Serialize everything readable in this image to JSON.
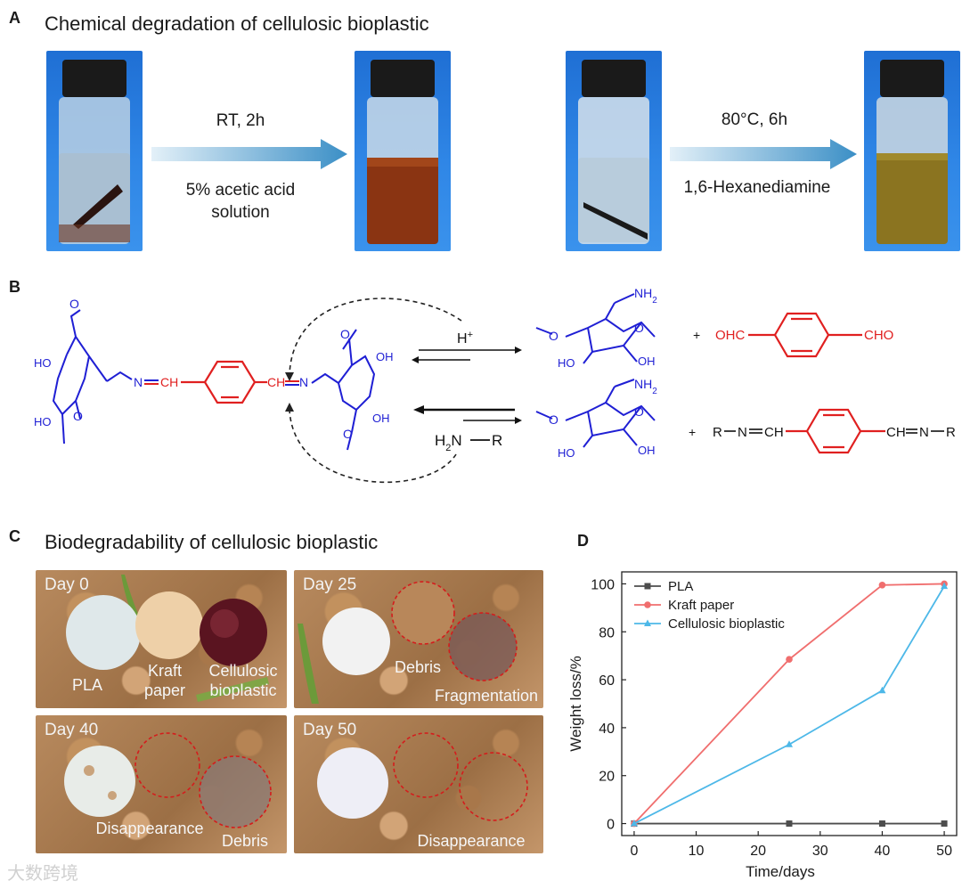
{
  "panel_a": {
    "letter": "A",
    "title": "Chemical degradation of cellulosic bioplastic",
    "step1": {
      "line1": "RT, 2h",
      "line2": "5% acetic acid",
      "line3": "solution"
    },
    "step2": {
      "line1": "80°C, 6h",
      "line2": "1,6-Hexanediamine"
    }
  },
  "panel_b": {
    "letter": "B",
    "labels": {
      "ho": "HO",
      "oh": "OH",
      "n": "N",
      "ch": "CH",
      "nh2": "NH",
      "nh2_sub": "2",
      "h_plus": "H",
      "plus_sup": "+",
      "ohc": "OHC",
      "cho": "CHO",
      "plus": "+",
      "h2n": "H",
      "h2n_sub": "2",
      "h2n_n": "N",
      "r": "R",
      "chn": "CH",
      "ch_eq": "C"
    }
  },
  "panel_c": {
    "letter": "C",
    "title": "Biodegradability of cellulosic bioplastic",
    "photos": [
      {
        "day": "Day 0",
        "labels": [
          "PLA",
          "Kraft\npaper",
          "Cellulosic\nbioplastic"
        ]
      },
      {
        "day": "Day 25",
        "labels": [
          "Debris",
          "Fragmentation"
        ]
      },
      {
        "day": "Day 40",
        "labels": [
          "Disappearance",
          "Debris"
        ]
      },
      {
        "day": "Day 50",
        "labels": [
          "Disappearance"
        ]
      }
    ]
  },
  "panel_d": {
    "letter": "D"
  },
  "watermark": "大数跨境",
  "chart_data": {
    "type": "line",
    "xlabel": "Time/days",
    "ylabel": "Weight loss/%",
    "xlim": [
      -2,
      52
    ],
    "ylim": [
      -5,
      105
    ],
    "xticks": [
      0,
      10,
      20,
      30,
      40,
      50
    ],
    "yticks": [
      0,
      20,
      40,
      60,
      80,
      100
    ],
    "legend_position": "top-left",
    "series": [
      {
        "name": "PLA",
        "color": "#4d4d4d",
        "marker": "square",
        "x": [
          0,
          25,
          40,
          50
        ],
        "y": [
          0,
          0,
          0,
          0
        ]
      },
      {
        "name": "Kraft paper",
        "color": "#f06e6e",
        "marker": "circle",
        "x": [
          0,
          25,
          40,
          50
        ],
        "y": [
          0,
          68.5,
          99.5,
          100
        ]
      },
      {
        "name": "Cellulosic bioplastic",
        "color": "#4db8e8",
        "marker": "triangle",
        "x": [
          0,
          25,
          40,
          50
        ],
        "y": [
          0,
          33,
          55.5,
          99
        ]
      }
    ]
  }
}
